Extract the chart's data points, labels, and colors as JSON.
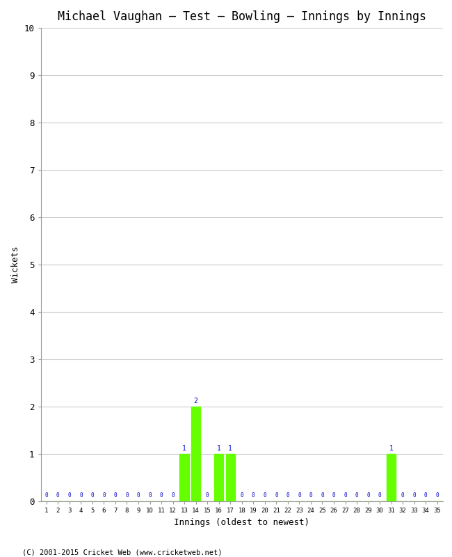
{
  "title": "Michael Vaughan – Test – Bowling – Innings by Innings",
  "xlabel": "Innings (oldest to newest)",
  "ylabel": "Wickets",
  "background_color": "#ffffff",
  "grid_color": "#cccccc",
  "bar_color": "#66ff00",
  "label_color": "#0000cc",
  "footer": "(C) 2001-2015 Cricket Web (www.cricketweb.net)",
  "ylim": [
    0,
    10
  ],
  "yticks": [
    0,
    1,
    2,
    3,
    4,
    5,
    6,
    7,
    8,
    9,
    10
  ],
  "innings_count": 35,
  "wickets": [
    0,
    0,
    0,
    0,
    0,
    0,
    0,
    0,
    0,
    0,
    0,
    0,
    1,
    2,
    0,
    1,
    1,
    0,
    0,
    0,
    0,
    0,
    0,
    0,
    0,
    0,
    0,
    0,
    0,
    0,
    1,
    0,
    0,
    0,
    0
  ]
}
